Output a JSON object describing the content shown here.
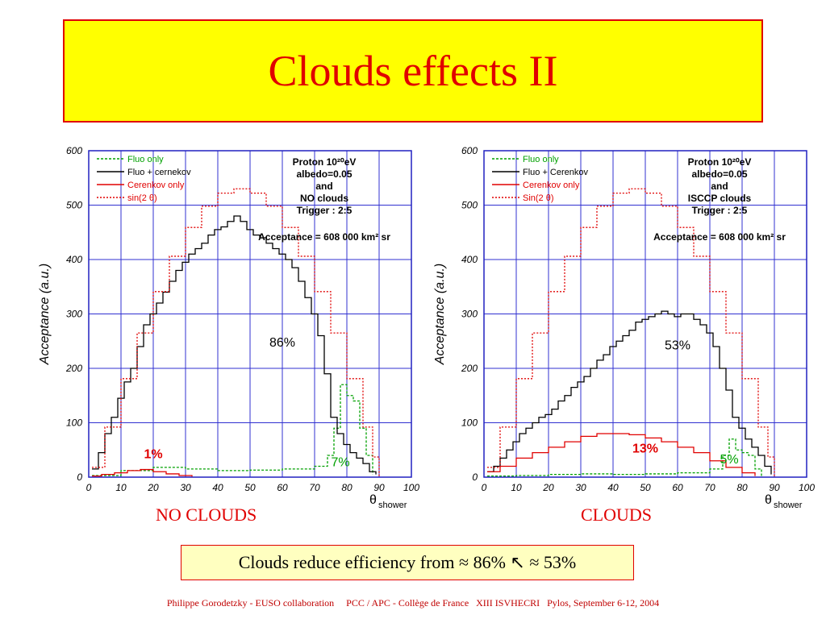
{
  "slide": {
    "title": "Clouds effects II",
    "caption_left": "NO CLOUDS",
    "caption_right": "CLOUDS",
    "conclusion": "Clouds reduce efficiency from ≈ 86% ↖ ≈ 53%",
    "footer": "Philippe Gorodetzky - EUSO collaboration     PCC / APC - Collège de France   XIII ISVHECRI   Pylos, September 6-12, 2004"
  },
  "chart_data": [
    {
      "type": "line",
      "ylabel": "Acceptance (a.u.)",
      "xlabel_main": "θ",
      "xlabel_sub": "shower",
      "xlim": [
        0,
        100
      ],
      "ylim": [
        0,
        600
      ],
      "xticks": [
        0,
        10,
        20,
        30,
        40,
        50,
        60,
        70,
        80,
        90,
        100
      ],
      "yticks": [
        0,
        100,
        200,
        300,
        400,
        500,
        600
      ],
      "grid": true,
      "legend_position": "top-left",
      "info_lines": [
        "Proton 10²⁰eV",
        "albedo=0.05",
        "and",
        "NO clouds",
        "Trigger : 2:5"
      ],
      "acceptance": "Acceptance = 608 000 km² sr",
      "series": [
        {
          "name": "Fluo only",
          "color": "#00a000",
          "dash": "3,2",
          "x": [
            1,
            10,
            20,
            30,
            40,
            50,
            60,
            70,
            74,
            76,
            78,
            80,
            82,
            84,
            86,
            88
          ],
          "y": [
            3,
            12,
            18,
            15,
            12,
            13,
            15,
            20,
            40,
            90,
            170,
            150,
            140,
            90,
            40,
            5
          ]
        },
        {
          "name": "Fluo + cernekov",
          "color": "#000000",
          "dash": "",
          "x": [
            1,
            3,
            5,
            7,
            9,
            11,
            13,
            15,
            17,
            19,
            21,
            23,
            25,
            27,
            29,
            31,
            33,
            35,
            37,
            39,
            41,
            43,
            45,
            47,
            49,
            51,
            53,
            55,
            57,
            59,
            61,
            63,
            65,
            67,
            69,
            71,
            73,
            75,
            77,
            79,
            81,
            83,
            85,
            87,
            89
          ],
          "y": [
            15,
            45,
            80,
            110,
            145,
            175,
            200,
            240,
            280,
            300,
            320,
            340,
            360,
            380,
            395,
            410,
            420,
            430,
            445,
            455,
            460,
            470,
            480,
            470,
            455,
            445,
            440,
            430,
            420,
            410,
            400,
            385,
            360,
            330,
            300,
            260,
            190,
            110,
            80,
            60,
            45,
            35,
            25,
            10,
            5
          ]
        },
        {
          "name": "Cerenkov only",
          "color": "#e00000",
          "dash": "",
          "x": [
            1,
            4,
            8,
            12,
            16,
            20,
            24,
            28,
            32
          ],
          "y": [
            2,
            5,
            8,
            12,
            14,
            10,
            6,
            3,
            1
          ]
        },
        {
          "name": "sin(2 θ)",
          "color": "#e00000",
          "dash": "2,2",
          "x": [
            1,
            5,
            10,
            15,
            20,
            25,
            30,
            35,
            40,
            45,
            50,
            55,
            60,
            65,
            70,
            75,
            80,
            85,
            88,
            90
          ],
          "y": [
            18,
            92,
            181,
            265,
            341,
            406,
            459,
            498,
            522,
            530,
            522,
            498,
            459,
            406,
            341,
            265,
            181,
            92,
            37,
            0
          ]
        }
      ],
      "annotations": [
        {
          "text": "86%",
          "x": 60,
          "y": 240,
          "color": "#000000",
          "bold": false
        },
        {
          "text": "1%",
          "x": 20,
          "y": 35,
          "color": "#e00000",
          "bold": true
        },
        {
          "text": "7%",
          "x": 78,
          "y": 20,
          "color": "#00a000",
          "bold": false
        }
      ]
    },
    {
      "type": "line",
      "ylabel": "Acceptance (a.u.)",
      "xlabel_main": "θ",
      "xlabel_sub": "shower",
      "xlim": [
        0,
        100
      ],
      "ylim": [
        0,
        600
      ],
      "xticks": [
        0,
        10,
        20,
        30,
        40,
        50,
        60,
        70,
        80,
        90,
        100
      ],
      "yticks": [
        0,
        100,
        200,
        300,
        400,
        500,
        600
      ],
      "grid": true,
      "legend_position": "top-left",
      "info_lines": [
        "Proton 10²⁰eV",
        "albedo=0.05",
        "and",
        "ISCCP clouds",
        "Trigger : 2:5"
      ],
      "acceptance": "Acceptance = 608 000 km² sr",
      "series": [
        {
          "name": "Fluo only",
          "color": "#00a000",
          "dash": "3,2",
          "x": [
            1,
            10,
            20,
            30,
            40,
            50,
            60,
            70,
            74,
            76,
            78,
            80,
            82,
            84,
            86
          ],
          "y": [
            2,
            3,
            5,
            6,
            5,
            6,
            8,
            15,
            40,
            70,
            50,
            45,
            40,
            15,
            2
          ]
        },
        {
          "name": "Fluo + Cerenkov",
          "color": "#000000",
          "dash": "",
          "x": [
            1,
            3,
            5,
            7,
            9,
            11,
            13,
            15,
            17,
            19,
            21,
            23,
            25,
            27,
            29,
            31,
            33,
            35,
            37,
            39,
            41,
            43,
            45,
            47,
            49,
            51,
            53,
            55,
            57,
            59,
            61,
            63,
            65,
            67,
            69,
            71,
            73,
            75,
            77,
            79,
            81,
            83,
            85,
            87,
            89
          ],
          "y": [
            10,
            20,
            35,
            50,
            65,
            80,
            90,
            100,
            110,
            115,
            125,
            140,
            150,
            165,
            175,
            185,
            200,
            215,
            225,
            240,
            250,
            260,
            270,
            285,
            290,
            295,
            300,
            305,
            300,
            295,
            300,
            300,
            290,
            280,
            265,
            240,
            200,
            160,
            110,
            90,
            70,
            55,
            40,
            20,
            5
          ]
        },
        {
          "name": "Cerenkov only",
          "color": "#e00000",
          "dash": "",
          "x": [
            1,
            5,
            10,
            15,
            20,
            25,
            30,
            35,
            40,
            45,
            50,
            55,
            60,
            65,
            70,
            75,
            80,
            84
          ],
          "y": [
            10,
            20,
            35,
            45,
            55,
            65,
            75,
            80,
            80,
            78,
            72,
            65,
            55,
            45,
            30,
            18,
            8,
            2
          ]
        },
        {
          "name": "Sin(2 θ)",
          "color": "#e00000",
          "dash": "2,2",
          "x": [
            1,
            5,
            10,
            15,
            20,
            25,
            30,
            35,
            40,
            45,
            50,
            55,
            60,
            65,
            70,
            75,
            80,
            85,
            88,
            90
          ],
          "y": [
            18,
            92,
            181,
            265,
            341,
            406,
            459,
            498,
            522,
            530,
            522,
            498,
            459,
            406,
            341,
            265,
            181,
            92,
            37,
            0
          ]
        }
      ],
      "annotations": [
        {
          "text": "53%",
          "x": 60,
          "y": 235,
          "color": "#000000",
          "bold": false
        },
        {
          "text": "13%",
          "x": 50,
          "y": 45,
          "color": "#e00000",
          "bold": true
        },
        {
          "text": "5%",
          "x": 76,
          "y": 25,
          "color": "#00a000",
          "bold": false
        }
      ]
    }
  ]
}
